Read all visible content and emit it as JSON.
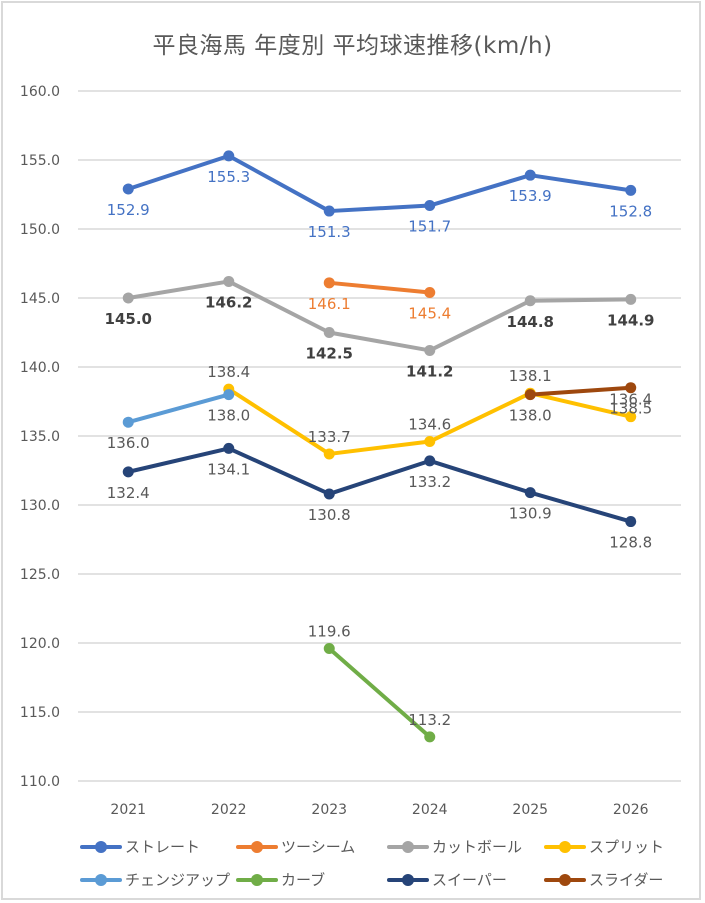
{
  "chart_data": {
    "type": "line",
    "title": "平良海馬 年度別 平均球速推移(km/h)",
    "xlabel": "",
    "ylabel": "",
    "x": [
      "2021",
      "2022",
      "2023",
      "2024",
      "2025",
      "2026"
    ],
    "ylim": [
      110.0,
      160.0
    ],
    "yticks": [
      "160.0",
      "155.0",
      "150.0",
      "145.0",
      "140.0",
      "135.0",
      "130.0",
      "125.0",
      "120.0",
      "115.0",
      "110.0"
    ],
    "ytick_values": [
      160,
      155,
      150,
      145,
      140,
      135,
      130,
      125,
      120,
      115,
      110
    ],
    "grid": true,
    "legend_position": "bottom",
    "series": [
      {
        "name": "ストレート",
        "color": "#4472c4",
        "label_color": "#4472c4",
        "label_pos": "below",
        "label_bold": false,
        "values": [
          152.9,
          155.3,
          151.3,
          151.7,
          153.9,
          152.8
        ]
      },
      {
        "name": "ツーシーム",
        "color": "#ed7d31",
        "label_color": "#ed7d31",
        "label_pos": "below",
        "label_bold": false,
        "values": [
          null,
          null,
          146.1,
          145.4,
          null,
          null
        ]
      },
      {
        "name": "カットボール",
        "color": "#a5a5a5",
        "label_color": "#404040",
        "label_pos": "below",
        "label_bold": true,
        "values": [
          145.0,
          146.2,
          142.5,
          141.2,
          144.8,
          144.9
        ]
      },
      {
        "name": "スプリット",
        "color": "#ffc000",
        "label_color": "#595959",
        "label_pos": "above",
        "label_bold": false,
        "values": [
          null,
          138.4,
          133.7,
          134.6,
          138.1,
          136.4
        ]
      },
      {
        "name": "チェンジアップ",
        "color": "#5b9bd5",
        "label_color": "#595959",
        "label_pos": "below",
        "label_bold": false,
        "values": [
          136.0,
          138.0,
          null,
          null,
          null,
          null
        ]
      },
      {
        "name": "カーブ",
        "color": "#70ad47",
        "label_color": "#595959",
        "label_pos": "above",
        "label_bold": false,
        "values": [
          null,
          null,
          119.6,
          113.2,
          null,
          null
        ]
      },
      {
        "name": "スイーパー",
        "color": "#264478",
        "label_color": "#595959",
        "label_pos": "below",
        "label_bold": false,
        "values": [
          132.4,
          134.1,
          130.8,
          133.2,
          130.9,
          128.8
        ]
      },
      {
        "name": "スライダー",
        "color": "#9e480e",
        "label_color": "#595959",
        "label_pos": "below",
        "label_bold": false,
        "values": [
          null,
          null,
          null,
          null,
          138.0,
          138.5
        ]
      }
    ]
  }
}
